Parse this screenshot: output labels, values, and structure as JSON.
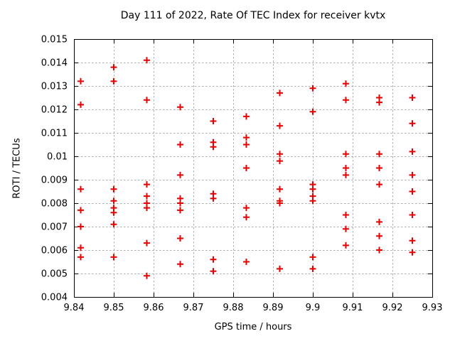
{
  "chart_data": {
    "type": "scatter",
    "title": "Day 111 of 2022, Rate Of TEC Index for receiver kvtx",
    "xlabel": "GPS time / hours",
    "ylabel": "ROTI / TECUs",
    "xlim": [
      9.84,
      9.93
    ],
    "ylim": [
      0.004,
      0.015
    ],
    "grid": "dashed",
    "legend_position": "none",
    "background_color": "#ffffff",
    "axis_color": "#000000",
    "grid_color": "#adadad",
    "marker": {
      "shape": "plus",
      "color": "#e60000",
      "size": 9
    },
    "xticks": [
      {
        "v": 9.84,
        "label": "9.84"
      },
      {
        "v": 9.85,
        "label": "9.85"
      },
      {
        "v": 9.86,
        "label": "9.86"
      },
      {
        "v": 9.87,
        "label": "9.87"
      },
      {
        "v": 9.88,
        "label": "9.88"
      },
      {
        "v": 9.89,
        "label": "9.89"
      },
      {
        "v": 9.9,
        "label": "9.9"
      },
      {
        "v": 9.91,
        "label": "9.91"
      },
      {
        "v": 9.92,
        "label": "9.92"
      },
      {
        "v": 9.93,
        "label": "9.93"
      }
    ],
    "yticks": [
      {
        "v": 0.004,
        "label": "0.004"
      },
      {
        "v": 0.005,
        "label": "0.005"
      },
      {
        "v": 0.006,
        "label": "0.006"
      },
      {
        "v": 0.007,
        "label": "0.007"
      },
      {
        "v": 0.008,
        "label": "0.008"
      },
      {
        "v": 0.009,
        "label": "0.009"
      },
      {
        "v": 0.01,
        "label": "0.01"
      },
      {
        "v": 0.011,
        "label": "0.011"
      },
      {
        "v": 0.012,
        "label": "0.012"
      },
      {
        "v": 0.013,
        "label": "0.013"
      },
      {
        "v": 0.014,
        "label": "0.014"
      },
      {
        "v": 0.015,
        "label": "0.015"
      }
    ],
    "series": [
      {
        "name": "ROTI",
        "points": [
          [
            9.8417,
            0.0132
          ],
          [
            9.8417,
            0.0122
          ],
          [
            9.8417,
            0.0086
          ],
          [
            9.8417,
            0.0077
          ],
          [
            9.8417,
            0.007
          ],
          [
            9.8417,
            0.0061
          ],
          [
            9.8417,
            0.0057
          ],
          [
            9.85,
            0.0138
          ],
          [
            9.85,
            0.0132
          ],
          [
            9.85,
            0.0086
          ],
          [
            9.85,
            0.0081
          ],
          [
            9.85,
            0.0078
          ],
          [
            9.85,
            0.0076
          ],
          [
            9.85,
            0.0071
          ],
          [
            9.85,
            0.0057
          ],
          [
            9.8583,
            0.0141
          ],
          [
            9.8583,
            0.0124
          ],
          [
            9.8583,
            0.0088
          ],
          [
            9.8583,
            0.0083
          ],
          [
            9.8583,
            0.008
          ],
          [
            9.8583,
            0.0078
          ],
          [
            9.8583,
            0.0063
          ],
          [
            9.8583,
            0.0049
          ],
          [
            9.8667,
            0.0121
          ],
          [
            9.8667,
            0.0105
          ],
          [
            9.8667,
            0.0092
          ],
          [
            9.8667,
            0.0082
          ],
          [
            9.8667,
            0.008
          ],
          [
            9.8667,
            0.0077
          ],
          [
            9.8667,
            0.0065
          ],
          [
            9.8667,
            0.0054
          ],
          [
            9.875,
            0.0115
          ],
          [
            9.875,
            0.0106
          ],
          [
            9.875,
            0.0104
          ],
          [
            9.875,
            0.0084
          ],
          [
            9.875,
            0.0082
          ],
          [
            9.875,
            0.0056
          ],
          [
            9.875,
            0.0051
          ],
          [
            9.8833,
            0.0117
          ],
          [
            9.8833,
            0.0108
          ],
          [
            9.8833,
            0.0105
          ],
          [
            9.8833,
            0.0095
          ],
          [
            9.8833,
            0.0078
          ],
          [
            9.8833,
            0.0074
          ],
          [
            9.8833,
            0.0055
          ],
          [
            9.8917,
            0.0127
          ],
          [
            9.8917,
            0.0113
          ],
          [
            9.8917,
            0.0101
          ],
          [
            9.8917,
            0.0098
          ],
          [
            9.8917,
            0.0086
          ],
          [
            9.8917,
            0.0081
          ],
          [
            9.8917,
            0.008
          ],
          [
            9.8917,
            0.0052
          ],
          [
            9.9,
            0.0129
          ],
          [
            9.9,
            0.0119
          ],
          [
            9.9,
            0.0088
          ],
          [
            9.9,
            0.0086
          ],
          [
            9.9,
            0.0083
          ],
          [
            9.9,
            0.0081
          ],
          [
            9.9,
            0.0057
          ],
          [
            9.9,
            0.0052
          ],
          [
            9.9083,
            0.0131
          ],
          [
            9.9083,
            0.0124
          ],
          [
            9.9083,
            0.0101
          ],
          [
            9.9083,
            0.0095
          ],
          [
            9.9083,
            0.0092
          ],
          [
            9.9083,
            0.0075
          ],
          [
            9.9083,
            0.0069
          ],
          [
            9.9083,
            0.0062
          ],
          [
            9.9167,
            0.0125
          ],
          [
            9.9167,
            0.0123
          ],
          [
            9.9167,
            0.0101
          ],
          [
            9.9167,
            0.0095
          ],
          [
            9.9167,
            0.0088
          ],
          [
            9.9167,
            0.0072
          ],
          [
            9.9167,
            0.0066
          ],
          [
            9.9167,
            0.006
          ],
          [
            9.925,
            0.0125
          ],
          [
            9.925,
            0.0114
          ],
          [
            9.925,
            0.0102
          ],
          [
            9.925,
            0.0092
          ],
          [
            9.925,
            0.0085
          ],
          [
            9.925,
            0.0075
          ],
          [
            9.925,
            0.0064
          ],
          [
            9.925,
            0.0059
          ]
        ]
      }
    ]
  }
}
